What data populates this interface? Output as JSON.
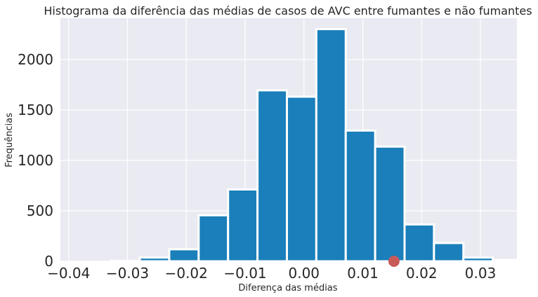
{
  "chart_data": {
    "type": "bar",
    "title": "Histograma da diferência das médias de casos de AVC entre fumantes e não fumantes",
    "xlabel": "Diferença das médias",
    "ylabel": "Frequências",
    "xlim": [
      -0.0414,
      0.0362
    ],
    "ylim": [
      0,
      2410
    ],
    "xticks": [
      -0.04,
      -0.03,
      -0.02,
      -0.01,
      0.0,
      0.01,
      0.02,
      0.03
    ],
    "xtick_labels": [
      "−0.04",
      "−0.03",
      "−0.02",
      "−0.01",
      "0.00",
      "0.01",
      "0.02",
      "0.03"
    ],
    "yticks": [
      0,
      500,
      1000,
      1500,
      2000
    ],
    "ytick_labels": [
      "0",
      "500",
      "1000",
      "1500",
      "2000"
    ],
    "grid": true,
    "bins": [
      {
        "x0": -0.0379,
        "x1": -0.0329,
        "count": 0
      },
      {
        "x0": -0.0329,
        "x1": -0.0279,
        "count": 3
      },
      {
        "x0": -0.0279,
        "x1": -0.0229,
        "count": 37
      },
      {
        "x0": -0.0229,
        "x1": -0.0179,
        "count": 119
      },
      {
        "x0": -0.0179,
        "x1": -0.0129,
        "count": 456
      },
      {
        "x0": -0.0129,
        "x1": -0.0079,
        "count": 712
      },
      {
        "x0": -0.0079,
        "x1": -0.0029,
        "count": 1695
      },
      {
        "x0": -0.0029,
        "x1": 0.0021,
        "count": 1632
      },
      {
        "x0": 0.0021,
        "x1": 0.0071,
        "count": 2302
      },
      {
        "x0": 0.0071,
        "x1": 0.0121,
        "count": 1296
      },
      {
        "x0": 0.0121,
        "x1": 0.0171,
        "count": 1137
      },
      {
        "x0": 0.0171,
        "x1": 0.0221,
        "count": 365
      },
      {
        "x0": 0.0221,
        "x1": 0.0271,
        "count": 181
      },
      {
        "x0": 0.0271,
        "x1": 0.0321,
        "count": 37
      },
      {
        "x0": 0.0321,
        "x1": 0.0371,
        "count": 14
      }
    ],
    "bar_color": "#1a7fba",
    "marker": {
      "x": 0.0153,
      "y": 0,
      "color": "#c85a5a"
    }
  }
}
